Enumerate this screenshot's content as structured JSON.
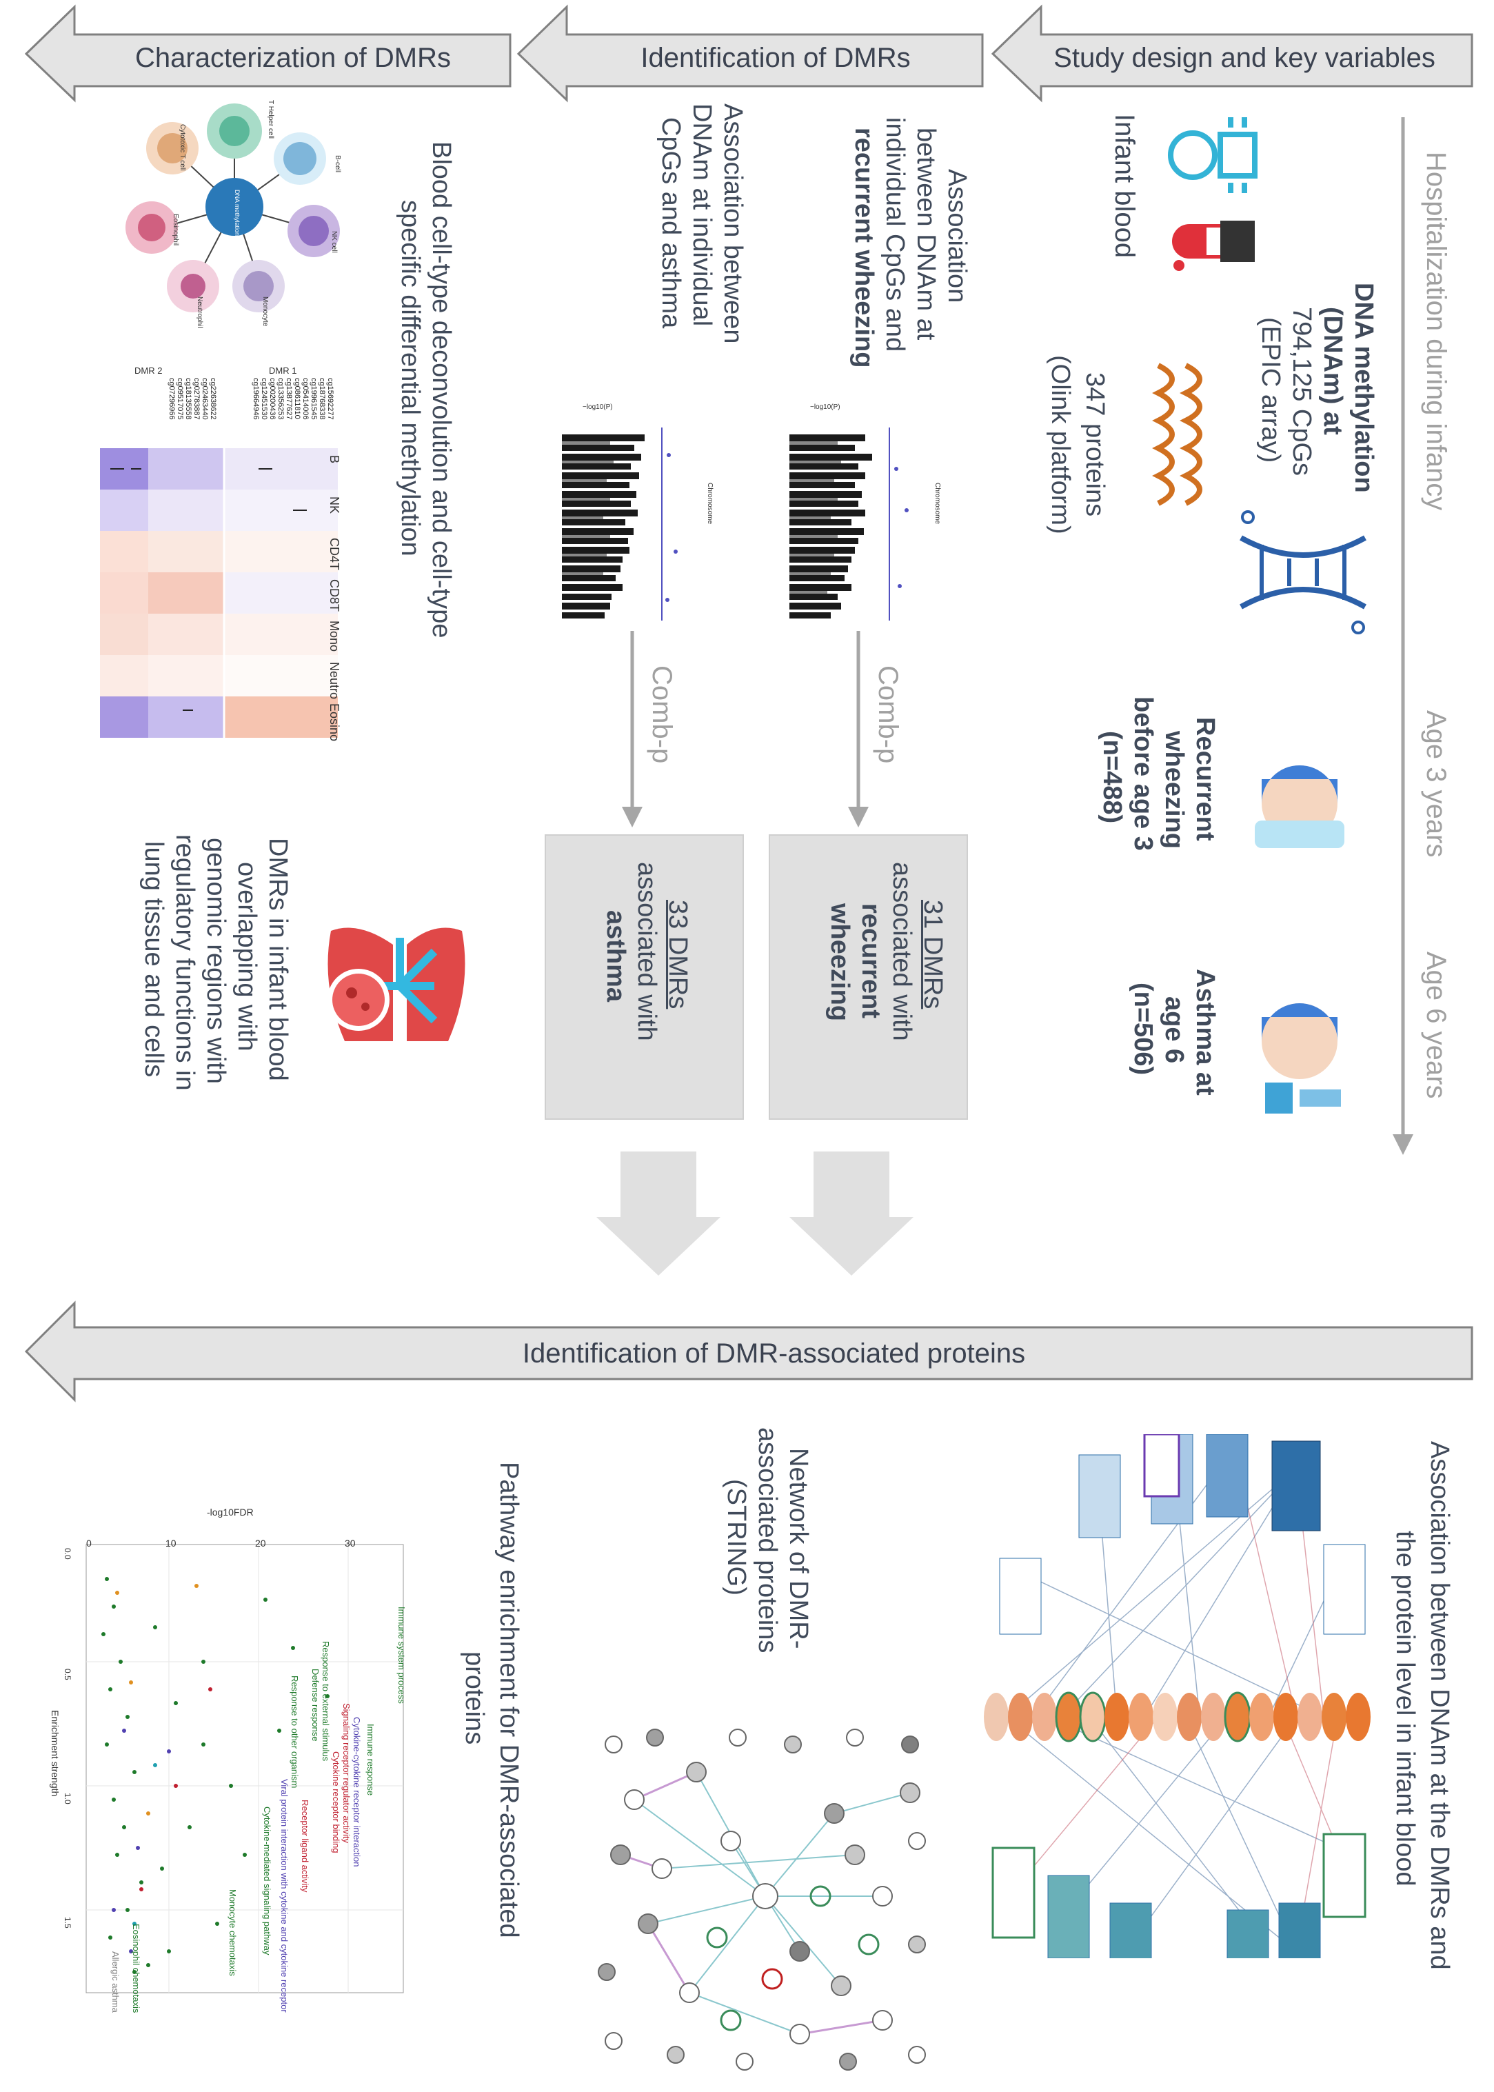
{
  "header_arrows": {
    "study_design": "Study design and key variables",
    "identification": "Identification of DMRs",
    "characterization": "Characterization of DMRs",
    "proteins": "Identification of DMR-associated proteins"
  },
  "timeline": {
    "hospitalization": "Hospitalization during infancy",
    "age3": "Age 3 years",
    "age6": "Age 6 years"
  },
  "study_design": {
    "infant_blood": "Infant blood",
    "dnam_line1": "DNA methylation",
    "dnam_line2": "(DNAm) at",
    "dnam_line3": "794,125 CpGs",
    "dnam_line4": "(EPIC array)",
    "proteins_line1": "347 proteins",
    "proteins_line2": "(Olink platform)",
    "wheezing_line1": "Recurrent",
    "wheezing_line2": "wheezing",
    "wheezing_line3": "before age 3",
    "wheezing_line4": "(n=488)",
    "asthma_line1": "Asthma at",
    "asthma_line2": "age 6",
    "asthma_line3": "(n=506)"
  },
  "identification": {
    "wheeze_assoc_line1": "Association",
    "wheeze_assoc_line2": "between DNAm at",
    "wheeze_assoc_line3": "individual CpGs and",
    "wheeze_assoc_line4": "recurrent wheezing",
    "asthma_assoc_line1": "Association between",
    "asthma_assoc_line2": "DNAm at individual",
    "asthma_assoc_line3": "CpGs and asthma",
    "combp": "Comb-p",
    "dmr_wheeze_count": "31 DMRs",
    "dmr_wheeze_line2": "associated with",
    "dmr_wheeze_line3": "recurrent",
    "dmr_wheeze_line4": "wheezing",
    "dmr_asthma_count": "33 DMRs",
    "dmr_asthma_line2": "associated with",
    "dmr_asthma_line3": "asthma",
    "manhattan_ylabel": "−log10(P)",
    "manhattan_xlabel": "Chromosome"
  },
  "characterization": {
    "deconv_line1": "Blood cell-type deconvolution and cell-type",
    "deconv_line2": "specific differential methylation",
    "lung_line1": "DMRs in infant blood",
    "lung_line2": "overlapping with",
    "lung_line3": "genomic regions with",
    "lung_line4": "regulatory functions in",
    "lung_line5": "lung tissue and cells",
    "cells": [
      "T Helper cell",
      "B-cell",
      "NK cell",
      "Monocyte",
      "Neutrophil",
      "Eosinophil",
      "Cytotoxic T cell"
    ],
    "center_cell": "DNA methylation",
    "heatmap_columns": [
      "B",
      "NK",
      "CD4T",
      "CD8T",
      "Mono",
      "Neutro",
      "Eosino"
    ],
    "heatmap_groups": [
      "DMR 1",
      "DMR 2"
    ],
    "heatmap_rows": [
      "cg15692277",
      "cg18768338",
      "cg19961545",
      "cg05414006",
      "cg08611810",
      "cg13877627",
      "cg13356253",
      "cg00200436",
      "cg12451530",
      "cg19664946",
      "cg22638622",
      "cg02463440",
      "cg02783887",
      "cg18135558",
      "cg09517075",
      "cg07296966"
    ]
  },
  "proteins": {
    "network_title_line1": "Association between DNAm at the DMRs and",
    "network_title_line2": "the protein level in infant blood",
    "string_line1": "Network of DMR-",
    "string_line2": "associated proteins",
    "string_line3": "(STRING)",
    "pathway_line1": "Pathway enrichment for DMR-associated",
    "pathway_line2": "proteins",
    "pathway_xlabel": "-log10FDR",
    "pathway_ylabel": "Enrichment strength",
    "pathway_terms": [
      "Immune system process",
      "Immune response",
      "Cytokine-cytokine receptor interaction",
      "Signaling receptor regulator activity",
      "Cytokine receptor binding",
      "Response to external stimulus",
      "Defense response",
      "Receptor ligand activity",
      "Response to other organism",
      "Viral protein interaction with cytokine and cytokine receptor",
      "Cytokine-mediated signaling pathway",
      "Monocyte chemotaxis",
      "Eosinophil chemotaxis",
      "Allergic asthma"
    ],
    "pathway_x_ticks": [
      "0",
      "10",
      "20",
      "30"
    ],
    "pathway_y_ticks": [
      "0.0",
      "0.5",
      "1.0",
      "1.5"
    ]
  },
  "colors": {
    "arrow_fill": "#e4e4e4",
    "arrow_stroke": "#808080",
    "box_fill": "#e0e0e0",
    "protein_orange": "#e8823a",
    "dmr_blue": "#4a90c6",
    "purple": "#8060c0",
    "green": "#3a8c5a"
  }
}
